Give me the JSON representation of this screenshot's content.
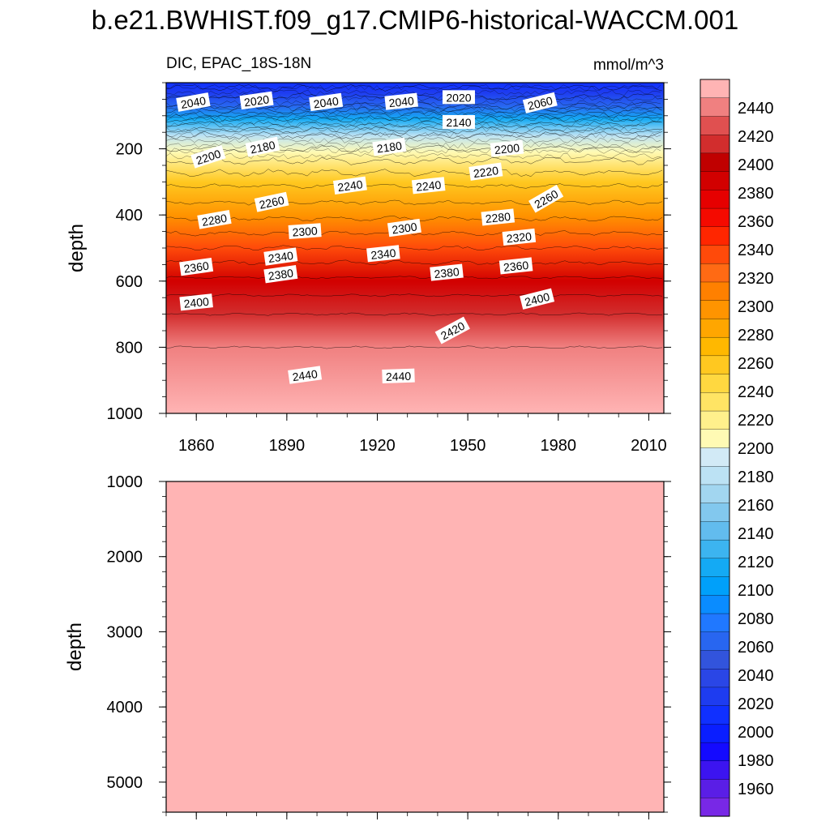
{
  "title": "b.e21.BWHIST.f09_g17.CMIP6-historical-WACCM.001",
  "panel_top": {
    "left_label": "DIC, EPAC_18S-18N",
    "right_label": "mmol/m^3",
    "ylabel": "depth",
    "x_ticks": [
      "1860",
      "1890",
      "1920",
      "1950",
      "1980",
      "2010"
    ],
    "y_ticks": [
      "200",
      "400",
      "600",
      "800",
      "1000"
    ]
  },
  "panel_bottom": {
    "ylabel": "depth",
    "y_ticks": [
      "1000",
      "2000",
      "3000",
      "4000",
      "5000"
    ]
  },
  "colorbar": {
    "labels": [
      "2440",
      "2420",
      "2400",
      "2380",
      "2360",
      "2340",
      "2320",
      "2300",
      "2280",
      "2260",
      "2240",
      "2220",
      "2200",
      "2180",
      "2160",
      "2140",
      "2120",
      "2100",
      "2080",
      "2060",
      "2040",
      "2020",
      "2000",
      "1980",
      "1960"
    ],
    "colors": [
      "#ffb4b4",
      "#f08080",
      "#e05050",
      "#d22d2d",
      "#c00000",
      "#d20000",
      "#e60000",
      "#f50a00",
      "#ff2600",
      "#ff4a0a",
      "#ff6a14",
      "#ff8000",
      "#ff9400",
      "#ffa600",
      "#ffb800",
      "#ffc820",
      "#ffd840",
      "#ffe464",
      "#fff08c",
      "#fffab4",
      "#d2eaf6",
      "#bce2f4",
      "#a2d6f0",
      "#82c8ee",
      "#62bcee",
      "#3cb4f0",
      "#14aaf4",
      "#00a0fa",
      "#0a8cff",
      "#2078ff",
      "#2866f0",
      "#3254dc",
      "#2a46e6",
      "#1e3cf0",
      "#1030ff",
      "#0a1eff",
      "#140aff",
      "#3c14f0",
      "#5a1ee6",
      "#7828e6"
    ]
  },
  "chart_data": [
    {
      "type": "heatmap",
      "title": "DIC, EPAC_18S-18N",
      "units": "mmol/m^3",
      "xlabel": "",
      "ylabel": "depth",
      "xlim": [
        1850,
        2015
      ],
      "ylim": [
        1000,
        0
      ],
      "x_ticks": [
        1860,
        1890,
        1920,
        1950,
        1980,
        2010
      ],
      "y_ticks": [
        200,
        400,
        600,
        800,
        1000
      ],
      "levels": [
        1960,
        1980,
        2000,
        2020,
        2040,
        2060,
        2080,
        2100,
        2120,
        2140,
        2160,
        2180,
        2200,
        2220,
        2240,
        2260,
        2280,
        2300,
        2320,
        2340,
        2360,
        2380,
        2400,
        2420,
        2440
      ],
      "depth_profile": [
        {
          "depth": 0,
          "value": 2010
        },
        {
          "depth": 30,
          "value": 2030
        },
        {
          "depth": 70,
          "value": 2060
        },
        {
          "depth": 110,
          "value": 2120
        },
        {
          "depth": 160,
          "value": 2180
        },
        {
          "depth": 210,
          "value": 2205
        },
        {
          "depth": 300,
          "value": 2255
        },
        {
          "depth": 400,
          "value": 2295
        },
        {
          "depth": 500,
          "value": 2340
        },
        {
          "depth": 600,
          "value": 2385
        },
        {
          "depth": 700,
          "value": 2420
        },
        {
          "depth": 800,
          "value": 2440
        },
        {
          "depth": 1000,
          "value": 2450
        }
      ],
      "contour_labels": [
        {
          "x": 1859,
          "depth": 60,
          "text": "2040"
        },
        {
          "x": 1880,
          "depth": 55,
          "text": "2020"
        },
        {
          "x": 1903,
          "depth": 60,
          "text": "2040"
        },
        {
          "x": 1928,
          "depth": 58,
          "text": "2040"
        },
        {
          "x": 1947,
          "depth": 45,
          "text": "2020"
        },
        {
          "x": 1974,
          "depth": 62,
          "text": "2060"
        },
        {
          "x": 1947,
          "depth": 120,
          "text": "2140"
        },
        {
          "x": 1864,
          "depth": 225,
          "text": "2200"
        },
        {
          "x": 1882,
          "depth": 195,
          "text": "2180"
        },
        {
          "x": 1924,
          "depth": 195,
          "text": "2180"
        },
        {
          "x": 1963,
          "depth": 200,
          "text": "2200"
        },
        {
          "x": 1956,
          "depth": 270,
          "text": "2220"
        },
        {
          "x": 1911,
          "depth": 312,
          "text": "2240"
        },
        {
          "x": 1937,
          "depth": 312,
          "text": "2240"
        },
        {
          "x": 1885,
          "depth": 362,
          "text": "2260"
        },
        {
          "x": 1976,
          "depth": 352,
          "text": "2260"
        },
        {
          "x": 1866,
          "depth": 415,
          "text": "2280"
        },
        {
          "x": 1960,
          "depth": 408,
          "text": "2280"
        },
        {
          "x": 1896,
          "depth": 450,
          "text": "2300"
        },
        {
          "x": 1929,
          "depth": 440,
          "text": "2300"
        },
        {
          "x": 1967,
          "depth": 468,
          "text": "2320"
        },
        {
          "x": 1888,
          "depth": 527,
          "text": "2340"
        },
        {
          "x": 1922,
          "depth": 518,
          "text": "2340"
        },
        {
          "x": 1860,
          "depth": 558,
          "text": "2360"
        },
        {
          "x": 1966,
          "depth": 555,
          "text": "2360"
        },
        {
          "x": 1888,
          "depth": 580,
          "text": "2380"
        },
        {
          "x": 1943,
          "depth": 575,
          "text": "2380"
        },
        {
          "x": 1860,
          "depth": 665,
          "text": "2400"
        },
        {
          "x": 1973,
          "depth": 655,
          "text": "2400"
        },
        {
          "x": 1945,
          "depth": 750,
          "text": "2420"
        },
        {
          "x": 1896,
          "depth": 885,
          "text": "2440"
        },
        {
          "x": 1927,
          "depth": 888,
          "text": "2440"
        }
      ]
    },
    {
      "type": "heatmap",
      "ylabel": "depth",
      "xlim": [
        1850,
        2015
      ],
      "ylim": [
        1000,
        5400
      ],
      "y_ticks": [
        1000,
        2000,
        3000,
        4000,
        5000
      ],
      "uniform_value": 2450
    }
  ]
}
